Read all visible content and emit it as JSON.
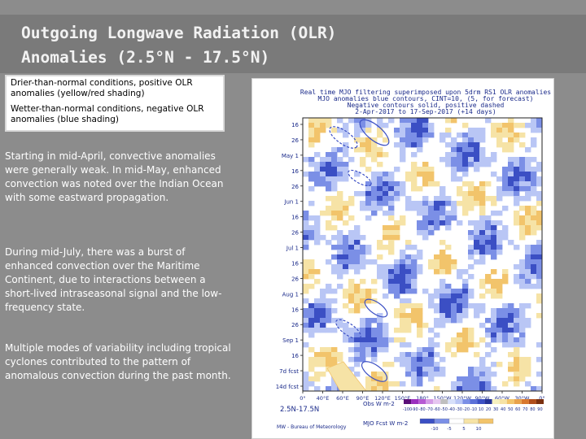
{
  "slide": {
    "title_line1": "Outgoing Longwave Radiation (OLR)",
    "title_line2": "Anomalies (2.5°N - 17.5°N)"
  },
  "legend": {
    "dry": "Drier-than-normal conditions, positive OLR anomalies (yellow/red shading)",
    "wet": "Wetter-than-normal conditions, negative OLR anomalies (blue shading)"
  },
  "paragraphs": [
    "Starting in mid-April, convective anomalies were generally weak. In mid-May, enhanced convection was noted over the Indian Ocean with some eastward propagation.",
    "During mid-July, there was a burst of enhanced convection over the Maritime Continent, due to interactions between a short-lived intraseasonal signal and the low-frequency state.",
    "Multiple modes of variability including tropical cyclones contributed to the pattern of anomalous convection during the past month."
  ],
  "figure": {
    "header_line1": "Real time MJO filtering superimposed upon 5drm RS1 OLR anomalies",
    "header_line2": "MJO anomalies blue contours, CINT=10, (5, for forecast)",
    "header_line3": "Negative contours solid, positive dashed",
    "header_line4": "2-Apr-2017 to 17-Sep-2017 (+14 days)",
    "y_labels": [
      "16",
      "26",
      "May 1",
      "16",
      "26",
      "Jun 1",
      "16",
      "26",
      "Jul 1",
      "16",
      "26",
      "Aug 1",
      "16",
      "26",
      "Sep 1",
      "16",
      "7d fcst",
      "14d fcst"
    ],
    "x_labels": [
      "0°",
      "40°E",
      "60°E",
      "90°E",
      "120°E",
      "150°E",
      "180°",
      "150°W",
      "120°W",
      "90°W",
      "60°W",
      "30°W",
      "0°"
    ],
    "lat_band": "2.5N-17.5N",
    "credit": "MW - Bureau of Meteorology",
    "obs_label": "Obs W m-2",
    "obs_ticks": [
      "-100",
      "-90",
      "-80",
      "-70",
      "-60",
      "-50",
      "-40",
      "-30",
      "-20",
      "-10",
      "10",
      "20",
      "30",
      "40",
      "50",
      "60",
      "70",
      "80",
      "90"
    ],
    "mjo_label": "MJO Fcst W m-2",
    "mjo_ticks": [
      "-10",
      "-5",
      "5",
      "10"
    ],
    "colors": {
      "blue_dark": "#3b4fc4",
      "blue_mid": "#7b8fe6",
      "blue_light": "#b9c6f5",
      "yellow_light": "#f6e3a6",
      "orange": "#f2c46b",
      "purple": "#9b2fbf"
    }
  }
}
